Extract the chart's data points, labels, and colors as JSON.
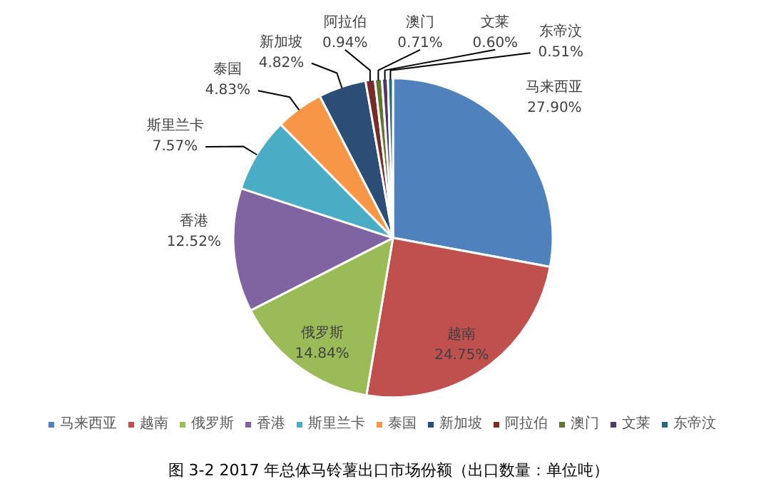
{
  "chart_data": {
    "type": "pie",
    "title": "图 3-2 2017 年总体马铃薯出口市场份额（出口数量：单位吨）",
    "categories": [
      "马来西亚",
      "越南",
      "俄罗斯",
      "香港",
      "斯里兰卡",
      "泰国",
      "新加坡",
      "阿拉伯",
      "澳门",
      "文莱",
      "东帝汶"
    ],
    "values": [
      27.9,
      24.75,
      14.84,
      12.52,
      7.57,
      4.83,
      4.82,
      0.94,
      0.71,
      0.6,
      0.51
    ],
    "value_labels": [
      "27.90%",
      "24.75%",
      "14.84%",
      "12.52%",
      "7.57%",
      "4.83%",
      "4.82%",
      "0.94%",
      "0.71%",
      "0.60%",
      "0.51%"
    ],
    "colors": [
      "#4f81bd",
      "#c0504d",
      "#9bbb59",
      "#8064a2",
      "#4bacc6",
      "#f79646",
      "#2c4d75",
      "#772c2a",
      "#5f7530",
      "#4d3b62",
      "#276a7c"
    ],
    "legend": "bottom"
  }
}
